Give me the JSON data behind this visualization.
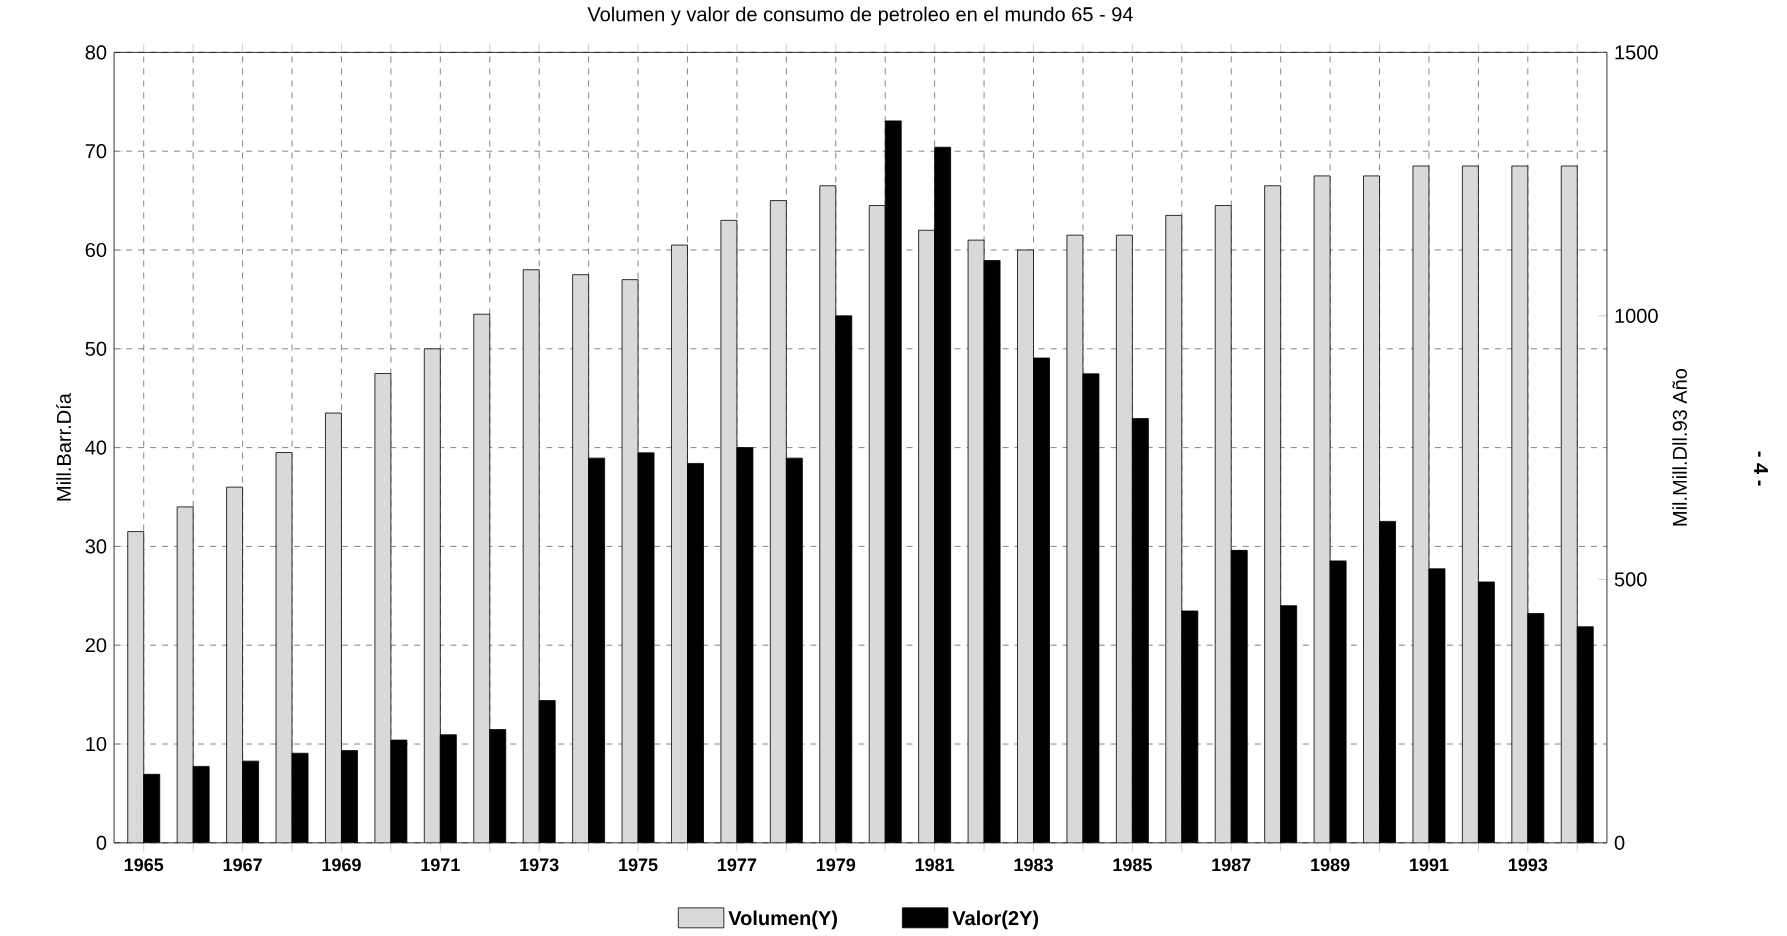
{
  "chart_data": {
    "type": "bar",
    "title": "Volumen y valor de consumo de petroleo en el mundo 65 - 94",
    "ylabel": "Mill.Barr.Día",
    "y2label": "Mil.Mill.Dll.93 Año",
    "categories": [
      "1965",
      null,
      "1967",
      null,
      "1969",
      null,
      "1971",
      null,
      "1973",
      null,
      "1975",
      null,
      "1977",
      null,
      "1979",
      null,
      "1981",
      null,
      "1983",
      null,
      "1985",
      null,
      "1987",
      null,
      "1989",
      null,
      "1991",
      null,
      "1993",
      null
    ],
    "series": [
      {
        "name": "Volumen(Y)",
        "color": "#d9d9d9",
        "values": [
          31.5,
          34,
          36,
          39.5,
          43.5,
          47.5,
          50,
          53.5,
          58,
          57.5,
          57,
          60.5,
          63,
          65,
          66.5,
          64.5,
          62,
          61,
          60,
          61.5,
          61.5,
          63.5,
          64.5,
          66.5,
          67.5,
          67.5,
          68.5,
          68.5,
          68.5,
          68.5
        ]
      },
      {
        "name": "Valor(2Y)",
        "color": "#000000",
        "axis": "y2",
        "values": [
          130,
          145,
          155,
          170,
          175,
          195,
          205,
          215,
          270,
          730,
          740,
          720,
          750,
          730,
          1000,
          1370,
          1320,
          1105,
          920,
          890,
          805,
          440,
          555,
          450,
          535,
          610,
          520,
          495,
          435,
          410
        ]
      }
    ],
    "ylim": [
      0,
      80
    ],
    "yticks": [
      0,
      10,
      20,
      30,
      40,
      50,
      60,
      70,
      80
    ],
    "y2lim": [
      0,
      1500
    ],
    "y2ticks": [
      0,
      500,
      1000,
      1500
    ],
    "grid": true,
    "legend": "bottom",
    "annotations": [
      "- 4 -"
    ]
  }
}
